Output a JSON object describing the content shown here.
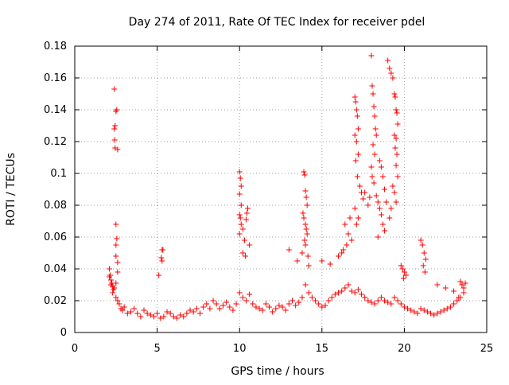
{
  "chart_data": {
    "type": "scatter",
    "title": "Day 274 of 2011, Rate Of TEC Index for receiver pdel",
    "xlabel": "GPS time / hours",
    "ylabel": "ROTI / TECUs",
    "xlim": [
      0,
      25
    ],
    "ylim": [
      0,
      0.18
    ],
    "x_ticks": [
      0,
      5,
      10,
      15,
      20,
      25
    ],
    "y_ticks": [
      0,
      0.02,
      0.04,
      0.06,
      0.08,
      0.1,
      0.12,
      0.14,
      0.16,
      0.18
    ],
    "x_tick_labels": [
      "0",
      "5",
      "10",
      "15",
      "20",
      "25"
    ],
    "y_tick_labels": [
      "0",
      "0.02",
      "0.04",
      "0.06",
      "0.08",
      "0.1",
      "0.12",
      "0.14",
      "0.16",
      "0.18"
    ],
    "grid": true,
    "marker": "+",
    "color": "#ff0000",
    "series": [
      {
        "x": [
          2.1,
          2.2,
          2.3,
          2.4,
          2.5,
          2.6,
          2.7,
          2.8,
          2.9,
          3.0,
          3.2,
          3.4,
          3.6,
          3.8,
          4.0,
          4.2,
          4.4,
          4.6,
          4.8,
          5.0,
          5.2,
          5.4,
          5.6,
          5.8,
          6.0,
          6.2,
          6.4,
          6.6,
          6.8,
          7.0,
          7.2,
          7.4,
          7.6,
          7.8,
          8.0,
          8.2,
          8.4,
          8.6,
          8.8,
          9.0,
          9.2,
          9.4,
          9.6,
          9.8,
          10.0,
          10.2,
          10.4,
          10.6,
          10.8,
          11.0,
          11.2,
          11.4,
          11.6,
          11.8,
          12.0,
          12.2,
          12.4,
          12.6,
          12.8,
          13.0,
          13.2,
          13.4,
          13.6,
          13.8,
          14.0,
          14.2,
          14.4,
          14.6,
          14.8,
          15.0,
          15.2,
          15.4,
          15.6,
          15.8,
          16.0,
          16.2,
          16.4,
          16.6,
          16.8,
          17.0,
          17.2,
          17.4,
          17.6,
          17.8,
          18.0,
          18.2,
          18.4,
          18.6,
          18.8,
          19.0,
          19.2,
          19.4,
          19.6,
          19.8,
          20.0,
          20.2,
          20.4,
          20.6,
          20.8,
          21.0,
          21.2,
          21.4,
          21.6,
          21.8,
          22.0,
          22.2,
          22.4,
          22.6,
          22.8,
          23.0,
          23.2,
          23.4,
          23.6,
          2.1,
          2.15,
          2.2,
          2.25,
          2.3,
          2.35,
          2.4,
          2.45,
          2.5,
          2.55,
          2.6,
          2.4,
          2.42,
          2.45,
          2.5,
          2.55,
          2.5,
          2.5,
          2.6,
          2.6,
          2.5,
          5.3,
          5.35,
          5.25,
          5.3,
          5.1,
          10.0,
          10.05,
          10.1,
          10.0,
          10.1,
          10.0,
          10.05,
          10.1,
          10.2,
          10.0,
          10.4,
          10.5,
          10.45,
          10.3,
          10.6,
          10.2,
          10.35,
          13.9,
          13.95,
          14.0,
          14.05,
          14.1,
          13.85,
          13.9,
          14.0,
          14.05,
          14.1,
          13.95,
          14.0,
          13.8,
          14.15,
          13.0,
          13.5,
          14.2,
          15.0,
          15.5,
          16.0,
          16.3,
          16.5,
          16.8,
          16.6,
          16.4,
          16.7,
          16.2,
          17.0,
          17.05,
          17.1,
          17.15,
          17.2,
          17.0,
          17.1,
          17.2,
          17.05,
          17.15,
          17.3,
          17.4,
          17.5,
          17.0,
          17.2,
          17.1,
          17.6,
          17.8,
          17.9,
          18.0,
          18.05,
          18.1,
          18.15,
          18.2,
          18.25,
          18.3,
          18.1,
          18.2,
          18.0,
          18.05,
          18.15,
          18.3,
          18.4,
          18.5,
          18.6,
          18.7,
          18.8,
          18.9,
          18.5,
          18.6,
          18.7,
          18.8,
          18.4,
          19.0,
          19.1,
          19.2,
          19.3,
          19.4,
          19.45,
          19.5,
          19.55,
          19.6,
          19.4,
          19.5,
          19.45,
          19.55,
          19.5,
          19.6,
          19.3,
          19.4,
          19.5,
          19.2,
          19.1,
          19.8,
          19.9,
          20.0,
          20.1,
          19.95,
          21.0,
          21.1,
          21.2,
          21.3,
          21.15,
          21.25,
          22.0,
          22.5,
          23.0,
          23.4,
          23.5,
          23.6,
          23.7,
          23.3
        ],
        "y": [
          0.035,
          0.03,
          0.025,
          0.028,
          0.022,
          0.02,
          0.018,
          0.015,
          0.014,
          0.016,
          0.012,
          0.013,
          0.015,
          0.012,
          0.01,
          0.014,
          0.012,
          0.011,
          0.01,
          0.012,
          0.009,
          0.01,
          0.013,
          0.012,
          0.01,
          0.009,
          0.011,
          0.01,
          0.012,
          0.014,
          0.013,
          0.015,
          0.012,
          0.016,
          0.018,
          0.015,
          0.02,
          0.018,
          0.015,
          0.017,
          0.019,
          0.016,
          0.014,
          0.018,
          0.025,
          0.022,
          0.02,
          0.024,
          0.018,
          0.016,
          0.015,
          0.014,
          0.018,
          0.016,
          0.013,
          0.015,
          0.017,
          0.016,
          0.014,
          0.018,
          0.02,
          0.017,
          0.019,
          0.022,
          0.03,
          0.025,
          0.022,
          0.02,
          0.018,
          0.016,
          0.017,
          0.02,
          0.022,
          0.024,
          0.025,
          0.026,
          0.028,
          0.03,
          0.026,
          0.025,
          0.027,
          0.024,
          0.022,
          0.02,
          0.019,
          0.018,
          0.02,
          0.022,
          0.02,
          0.019,
          0.018,
          0.022,
          0.02,
          0.018,
          0.016,
          0.015,
          0.014,
          0.013,
          0.012,
          0.015,
          0.014,
          0.013,
          0.012,
          0.011,
          0.012,
          0.013,
          0.014,
          0.015,
          0.016,
          0.018,
          0.02,
          0.022,
          0.025,
          0.04,
          0.036,
          0.033,
          0.031,
          0.029,
          0.027,
          0.128,
          0.13,
          0.139,
          0.14,
          0.115,
          0.153,
          0.121,
          0.116,
          0.068,
          0.059,
          0.055,
          0.048,
          0.044,
          0.038,
          0.031,
          0.052,
          0.052,
          0.047,
          0.045,
          0.036,
          0.101,
          0.097,
          0.092,
          0.087,
          0.08,
          0.074,
          0.072,
          0.068,
          0.065,
          0.062,
          0.071,
          0.078,
          0.075,
          0.058,
          0.055,
          0.05,
          0.048,
          0.101,
          0.099,
          0.089,
          0.085,
          0.08,
          0.075,
          0.072,
          0.068,
          0.065,
          0.062,
          0.058,
          0.055,
          0.05,
          0.048,
          0.052,
          0.045,
          0.042,
          0.045,
          0.043,
          0.048,
          0.052,
          0.055,
          0.058,
          0.062,
          0.068,
          0.072,
          0.05,
          0.148,
          0.145,
          0.14,
          0.136,
          0.128,
          0.124,
          0.12,
          0.112,
          0.108,
          0.098,
          0.092,
          0.088,
          0.084,
          0.078,
          0.072,
          0.068,
          0.088,
          0.08,
          0.085,
          0.174,
          0.155,
          0.15,
          0.142,
          0.136,
          0.128,
          0.124,
          0.118,
          0.112,
          0.104,
          0.098,
          0.094,
          0.086,
          0.082,
          0.108,
          0.104,
          0.098,
          0.09,
          0.082,
          0.078,
          0.074,
          0.068,
          0.064,
          0.06,
          0.171,
          0.166,
          0.163,
          0.16,
          0.15,
          0.148,
          0.14,
          0.138,
          0.131,
          0.124,
          0.122,
          0.116,
          0.112,
          0.105,
          0.098,
          0.092,
          0.088,
          0.082,
          0.078,
          0.072,
          0.042,
          0.04,
          0.038,
          0.036,
          0.034,
          0.058,
          0.055,
          0.05,
          0.046,
          0.042,
          0.038,
          0.03,
          0.028,
          0.026,
          0.032,
          0.03,
          0.028,
          0.031,
          0.022
        ]
      }
    ]
  }
}
